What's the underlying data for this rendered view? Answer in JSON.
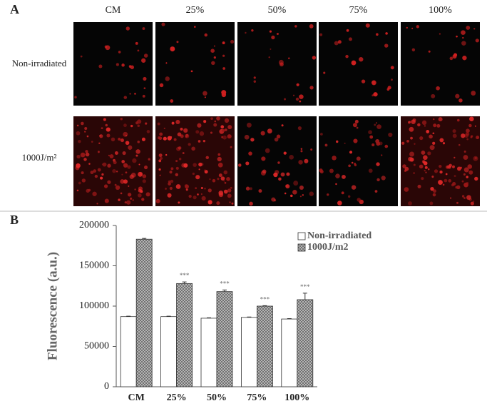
{
  "panel_a": {
    "label": "A",
    "columns": [
      "CM",
      "25%",
      "50%",
      "75%",
      "100%"
    ],
    "rows": [
      "Non-irradiated",
      "1000J/m²"
    ]
  },
  "chart_data": {
    "type": "bar",
    "panel_label": "B",
    "ylabel": "Fluorescence (a.u.)",
    "categories": [
      "CM",
      "25%",
      "50%",
      "75%",
      "100%"
    ],
    "series": [
      {
        "name": "Non-irradiated",
        "color": "#ffffff",
        "values": [
          87000,
          87000,
          85000,
          86000,
          84000
        ],
        "errors": [
          500,
          500,
          500,
          500,
          500
        ]
      },
      {
        "name": "1000J/m2",
        "color": "#9a9a9a",
        "values": [
          183000,
          128000,
          118000,
          100000,
          108000
        ],
        "errors": [
          1000,
          2000,
          2000,
          500,
          8000
        ],
        "annotations": [
          null,
          "***",
          "***",
          "***",
          "***"
        ]
      }
    ],
    "ylim": [
      0,
      200000
    ],
    "yticks": [
      0,
      50000,
      100000,
      150000,
      200000
    ]
  }
}
